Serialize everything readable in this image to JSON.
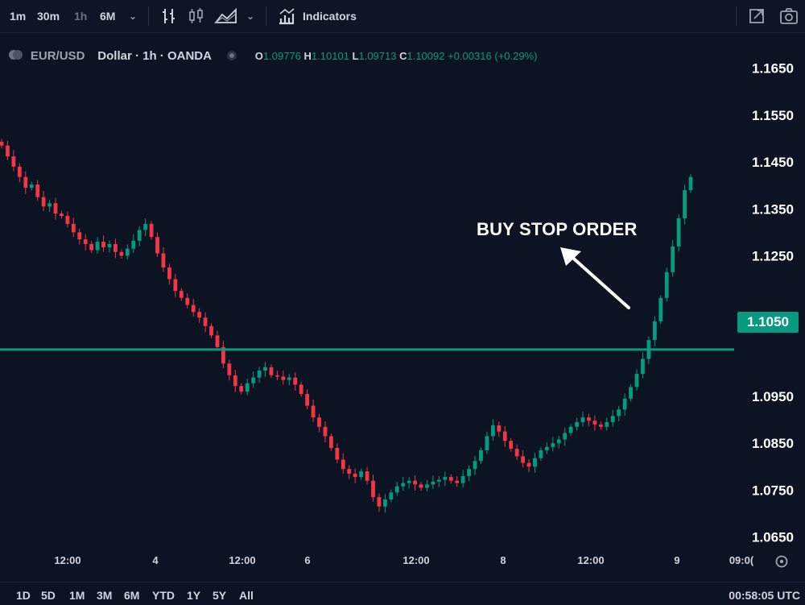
{
  "toolbar": {
    "intervals": [
      "1m",
      "30m",
      "1h",
      "6M"
    ],
    "indicators_label": "Indicators"
  },
  "legend": {
    "symbol": "EUR/USD",
    "description": "Dollar · 1h · OANDA",
    "o_label": "O",
    "o_value": "1.09776",
    "h_label": "H",
    "h_value": "1.10101",
    "l_label": "L",
    "l_value": "1.09713",
    "c_label": "C",
    "c_value": "1.10092",
    "change": "+0.00316 (+0.29%)"
  },
  "annotation": {
    "text": "BUY STOP ORDER"
  },
  "price_level": {
    "label": "1.1050",
    "value": 1.105,
    "color": "#089981"
  },
  "price_axis": [
    "1.1650",
    "1.1550",
    "1.1450",
    "1.1350",
    "1.1250",
    "1.0950",
    "1.0850",
    "1.0750",
    "1.0650"
  ],
  "time_axis": [
    "12:00",
    "4",
    "12:00",
    "6",
    "12:00",
    "8",
    "12:00",
    "9",
    "09:0("
  ],
  "ranges": [
    "1D",
    "5D",
    "1M",
    "3M",
    "6M",
    "YTD",
    "1Y",
    "5Y",
    "All"
  ],
  "clock": "00:58:05 UTC",
  "colors": {
    "up": "#089981",
    "down": "#f23645",
    "background": "#0c1424"
  },
  "chart_data": {
    "type": "candlestick",
    "ylim": [
      1.062,
      1.172
    ],
    "closes": [
      1.1485,
      1.1462,
      1.144,
      1.1418,
      1.1395,
      1.1402,
      1.1375,
      1.1355,
      1.1362,
      1.134,
      1.1335,
      1.1318,
      1.13,
      1.1285,
      1.1275,
      1.1262,
      1.128,
      1.1268,
      1.1275,
      1.1258,
      1.125,
      1.1265,
      1.1282,
      1.1305,
      1.1318,
      1.129,
      1.1255,
      1.1225,
      1.12,
      1.1175,
      1.116,
      1.1145,
      1.113,
      1.1118,
      1.11,
      1.108,
      1.1055,
      1.102,
      1.0995,
      1.0972,
      1.096,
      1.0978,
      1.099,
      1.1005,
      1.1012,
      1.0995,
      1.0992,
      1.0985,
      1.099,
      1.0975,
      1.0955,
      1.093,
      1.0905,
      1.0885,
      1.0865,
      1.084,
      1.0815,
      1.0795,
      1.0785,
      1.0778,
      1.079,
      1.077,
      1.0735,
      1.0715,
      1.073,
      1.0745,
      1.0758,
      1.0765,
      1.077,
      1.0762,
      1.0755,
      1.0762,
      1.0768,
      1.0772,
      1.0778,
      1.077,
      1.0765,
      1.078,
      1.0795,
      1.0812,
      1.0835,
      1.0865,
      1.0888,
      1.0875,
      1.0855,
      1.0838,
      1.0822,
      1.0808,
      1.08,
      1.0818,
      1.0835,
      1.0842,
      1.085,
      1.0858,
      1.0872,
      1.0885,
      1.0895,
      1.0905,
      1.0898,
      1.089,
      1.0885,
      1.0895,
      1.0908,
      1.0922,
      1.0945,
      1.097,
      1.0998,
      1.103,
      1.107,
      1.111,
      1.116,
      1.1215,
      1.127,
      1.133,
      1.139,
      1.1418
    ]
  }
}
